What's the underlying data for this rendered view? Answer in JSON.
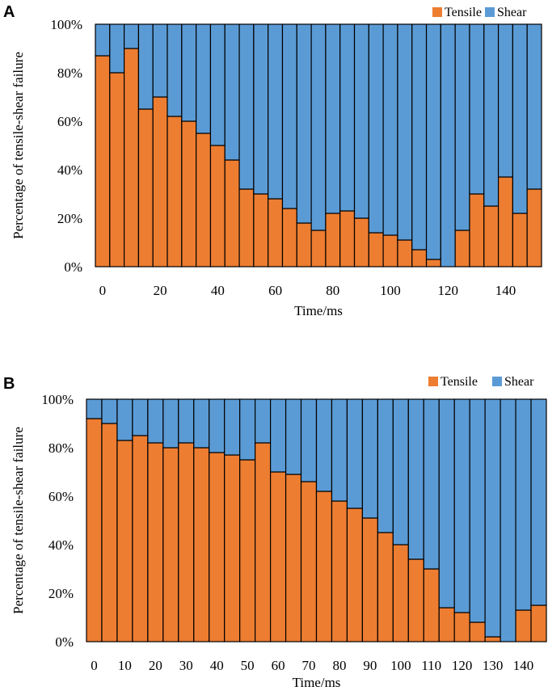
{
  "colors": {
    "tensile": "#ED7D31",
    "shear": "#5B9BD5",
    "border": "#000000"
  },
  "chart_data": [
    {
      "panel": "A",
      "type": "bar",
      "stacked": true,
      "title": "",
      "xlabel": "Time/ms",
      "ylabel": "Percentage of tensile-shear failure",
      "ylim": [
        0,
        100
      ],
      "y_ticks": [
        "0%",
        "20%",
        "40%",
        "60%",
        "80%",
        "100%"
      ],
      "x_ticks": [
        {
          "value": 0,
          "label": "0"
        },
        {
          "value": 20,
          "label": "20"
        },
        {
          "value": 40,
          "label": "40"
        },
        {
          "value": 60,
          "label": "60"
        },
        {
          "value": 80,
          "label": "80"
        },
        {
          "value": 100,
          "label": "100"
        },
        {
          "value": 120,
          "label": "120"
        },
        {
          "value": 140,
          "label": "140"
        }
      ],
      "x_range": [
        -2.5,
        152.5
      ],
      "x": [
        0,
        5,
        10,
        15,
        20,
        25,
        30,
        35,
        40,
        45,
        50,
        55,
        60,
        65,
        70,
        75,
        80,
        85,
        90,
        95,
        100,
        105,
        110,
        115,
        120,
        125,
        130,
        135,
        140,
        145,
        150
      ],
      "legend": "top-right",
      "series": [
        {
          "name": "Tensile",
          "values": [
            87,
            80,
            90,
            65,
            70,
            62,
            60,
            55,
            50,
            44,
            32,
            30,
            28,
            24,
            18,
            15,
            22,
            23,
            20,
            14,
            13,
            11,
            7,
            3,
            0,
            15,
            30,
            25,
            37,
            22,
            32
          ]
        },
        {
          "name": "Shear",
          "values": [
            13,
            20,
            10,
            35,
            30,
            38,
            40,
            45,
            50,
            56,
            68,
            70,
            72,
            76,
            82,
            85,
            78,
            77,
            80,
            86,
            87,
            89,
            93,
            97,
            100,
            85,
            70,
            75,
            63,
            78,
            68
          ]
        }
      ]
    },
    {
      "panel": "B",
      "type": "bar",
      "stacked": true,
      "title": "",
      "xlabel": "Time/ms",
      "ylabel": "Percentage of tensile-shear failure",
      "ylim": [
        0,
        100
      ],
      "y_ticks": [
        "0%",
        "20%",
        "40%",
        "60%",
        "80%",
        "100%"
      ],
      "x_ticks": [
        {
          "value": 0,
          "label": "0"
        },
        {
          "value": 10,
          "label": "10"
        },
        {
          "value": 20,
          "label": "20"
        },
        {
          "value": 30,
          "label": "30"
        },
        {
          "value": 40,
          "label": "40"
        },
        {
          "value": 50,
          "label": "50"
        },
        {
          "value": 60,
          "label": "60"
        },
        {
          "value": 70,
          "label": "70"
        },
        {
          "value": 80,
          "label": "80"
        },
        {
          "value": 90,
          "label": "90"
        },
        {
          "value": 100,
          "label": "100"
        },
        {
          "value": 110,
          "label": "110"
        },
        {
          "value": 120,
          "label": "120"
        },
        {
          "value": 130,
          "label": "130"
        },
        {
          "value": 140,
          "label": "140"
        }
      ],
      "x_range": [
        -2.5,
        147.5
      ],
      "x": [
        0,
        5,
        10,
        15,
        20,
        25,
        30,
        35,
        40,
        45,
        50,
        55,
        60,
        65,
        70,
        75,
        80,
        85,
        90,
        95,
        100,
        105,
        110,
        115,
        120,
        125,
        130,
        135,
        140,
        145
      ],
      "legend": "top-right",
      "series": [
        {
          "name": "Tensile",
          "values": [
            92,
            90,
            83,
            85,
            82,
            80,
            82,
            80,
            78,
            77,
            75,
            82,
            70,
            69,
            66,
            62,
            58,
            55,
            51,
            45,
            40,
            34,
            30,
            14,
            12,
            8,
            2,
            0,
            13,
            15
          ]
        },
        {
          "name": "Shear",
          "values": [
            8,
            10,
            17,
            15,
            18,
            20,
            18,
            20,
            22,
            23,
            25,
            18,
            30,
            31,
            34,
            38,
            42,
            45,
            49,
            55,
            60,
            66,
            70,
            86,
            88,
            92,
            98,
            100,
            87,
            85
          ]
        }
      ]
    }
  ],
  "panels": [
    {
      "letter": "A"
    },
    {
      "letter": "B"
    }
  ]
}
